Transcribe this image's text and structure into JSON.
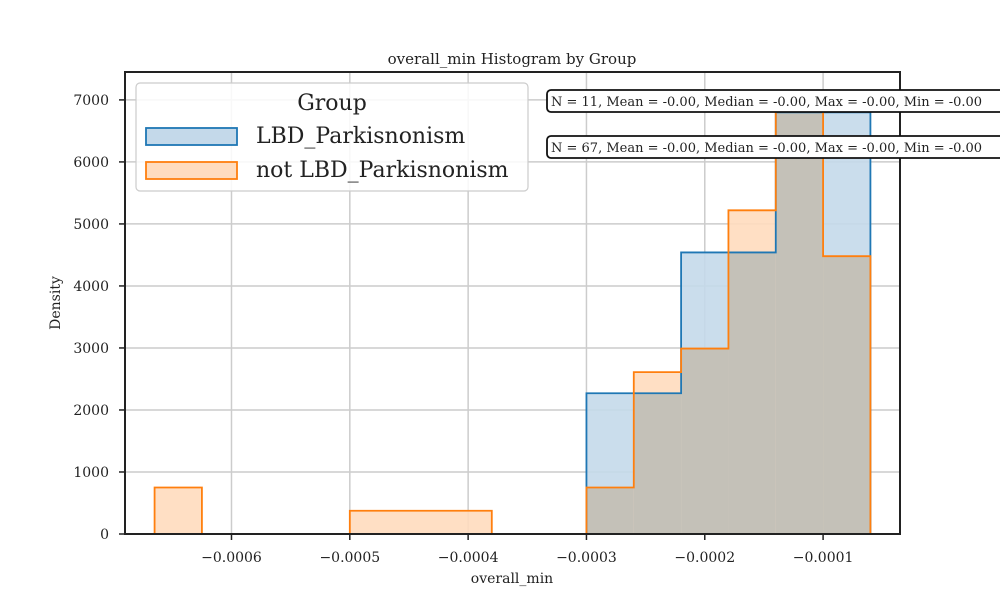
{
  "chart_data": {
    "type": "histogram",
    "title": "overall_min Histogram by Group",
    "xlabel": "overall_min",
    "ylabel": "Density",
    "xlim": [
      -0.00069,
      -3.5e-05
    ],
    "ylim": [
      0,
      7450
    ],
    "x_ticks": [
      {
        "value": -0.0006,
        "label": "−0.0006"
      },
      {
        "value": -0.0005,
        "label": "−0.0005"
      },
      {
        "value": -0.0004,
        "label": "−0.0004"
      },
      {
        "value": -0.0003,
        "label": "−0.0003"
      },
      {
        "value": -0.0002,
        "label": "−0.0002"
      },
      {
        "value": -0.0001,
        "label": "−0.0001"
      }
    ],
    "y_ticks": [
      {
        "value": 0,
        "label": "0"
      },
      {
        "value": 1000,
        "label": "1000"
      },
      {
        "value": 2000,
        "label": "2000"
      },
      {
        "value": 3000,
        "label": "3000"
      },
      {
        "value": 4000,
        "label": "4000"
      },
      {
        "value": 5000,
        "label": "5000"
      },
      {
        "value": 6000,
        "label": "6000"
      },
      {
        "value": 7000,
        "label": "7000"
      }
    ],
    "grid": true,
    "legend": {
      "title": "Group",
      "placement": "top-left"
    },
    "series": [
      {
        "name": "LBD_Parkisnonism",
        "edge_color": "#1f77b4",
        "fill_color": "#c4d9ea",
        "bins": [
          {
            "x0": -0.0003,
            "x1": -0.00022,
            "density": 2270
          },
          {
            "x0": -0.00022,
            "x1": -0.00014,
            "density": 4540
          },
          {
            "x0": -0.00014,
            "x1": -6e-05,
            "density": 6800
          }
        ]
      },
      {
        "name": "not LBD_Parkisnonism",
        "edge_color": "#ff7f0e",
        "fill_color": "#ffdcbe",
        "bins": [
          {
            "x0": -0.000665,
            "x1": -0.000625,
            "density": 750
          },
          {
            "x0": -0.0005,
            "x1": -0.00038,
            "density": 375
          },
          {
            "x0": -0.0003,
            "x1": -0.00026,
            "density": 750
          },
          {
            "x0": -0.00026,
            "x1": -0.00022,
            "density": 2610
          },
          {
            "x0": -0.00022,
            "x1": -0.00018,
            "density": 2990
          },
          {
            "x0": -0.00018,
            "x1": -0.00014,
            "density": 5220
          },
          {
            "x0": -0.00014,
            "x1": -0.0001,
            "density": 6900
          },
          {
            "x0": -0.0001,
            "x1": -6e-05,
            "density": 4480
          }
        ]
      }
    ],
    "overlap_color": "#c4c1b8",
    "annotations": [
      {
        "series": "LBD_Parkisnonism",
        "text": "N = 11, Mean = -0.00, Median = -0.00, Max = -0.00, Min = -0.00"
      },
      {
        "series": "not LBD_Parkisnonism",
        "text": "N = 67, Mean = -0.00, Median = -0.00, Max = -0.00, Min = -0.00"
      }
    ]
  }
}
